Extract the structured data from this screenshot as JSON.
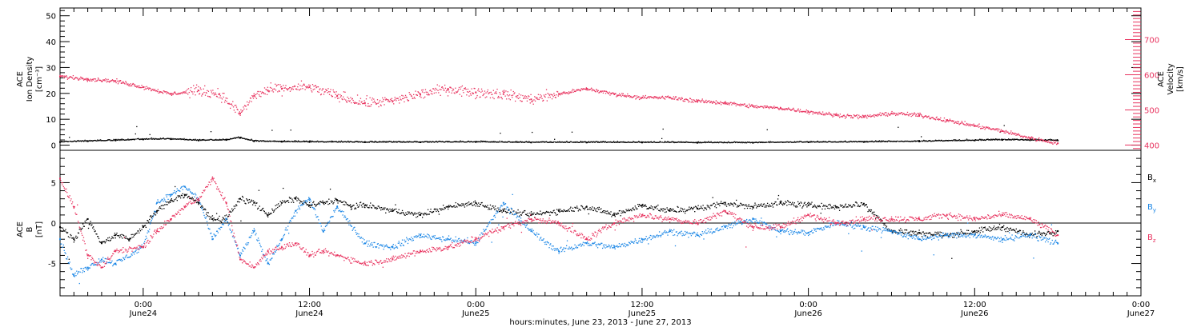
{
  "colors": {
    "black": "#000000",
    "red": "#e8335f",
    "blue": "#1a86e6"
  },
  "time_axis": {
    "start_hours": -6.0,
    "end_hours": 72.0,
    "tick_labels": [
      {
        "h": 0,
        "time": "0:00",
        "date": "June24"
      },
      {
        "h": 12,
        "time": "12:00",
        "date": "June24"
      },
      {
        "h": 24,
        "time": "0:00",
        "date": "June25"
      },
      {
        "h": 36,
        "time": "12:00",
        "date": "June25"
      },
      {
        "h": 48,
        "time": "0:00",
        "date": "June26"
      },
      {
        "h": 60,
        "time": "12:00",
        "date": "June26"
      },
      {
        "h": 72,
        "time": "0:00",
        "date": "June27"
      }
    ],
    "xlabel": "hours:minutes, June 23, 2013 - June 27, 2013"
  },
  "chart_data": [
    {
      "type": "scatter",
      "panel": "plasma",
      "left_axis": {
        "label_lines": [
          "ACE",
          "Ion Density",
          "[cm⁻³]"
        ],
        "ylim": [
          -2,
          53
        ],
        "ticks": [
          0,
          10,
          20,
          30,
          40,
          50
        ],
        "tick_labels": [
          "0",
          "10",
          "20",
          "30",
          "40",
          "50"
        ]
      },
      "right_axis": {
        "label_lines": [
          "ACE",
          "Velocity",
          "[km/s]"
        ],
        "ylim": [
          385,
          790
        ],
        "ticks": [
          400,
          500,
          600,
          700
        ],
        "tick_labels": [
          "400",
          "500",
          "600",
          "700"
        ]
      },
      "series": [
        {
          "axis": "left",
          "color": "#000000",
          "points": [
            [
              -6,
              1.2
            ],
            [
              -4,
              1.5
            ],
            [
              -2,
              1.8
            ],
            [
              0,
              2.2
            ],
            [
              2,
              2.3
            ],
            [
              4,
              1.8
            ],
            [
              6,
              2.0
            ],
            [
              7,
              2.8
            ],
            [
              8,
              1.5
            ],
            [
              10,
              1.3
            ],
            [
              12,
              1.2
            ],
            [
              16,
              1.1
            ],
            [
              20,
              1.1
            ],
            [
              24,
              1.2
            ],
            [
              28,
              1.0
            ],
            [
              32,
              1.0
            ],
            [
              36,
              1.0
            ],
            [
              40,
              0.9
            ],
            [
              44,
              0.9
            ],
            [
              48,
              1.1
            ],
            [
              52,
              1.2
            ],
            [
              56,
              1.4
            ],
            [
              60,
              1.8
            ],
            [
              62,
              2.0
            ],
            [
              64,
              1.9
            ],
            [
              66,
              1.8
            ]
          ]
        },
        {
          "axis": "right",
          "color": "#e8335f",
          "points": [
            [
              -6,
              595
            ],
            [
              -4,
              588
            ],
            [
              -2,
              582
            ],
            [
              0,
              565
            ],
            [
              2,
              545
            ],
            [
              4,
              555
            ],
            [
              5.5,
              545
            ],
            [
              7,
              490
            ],
            [
              8,
              540
            ],
            [
              9,
              555
            ],
            [
              10,
              560
            ],
            [
              12,
              565
            ],
            [
              14,
              540
            ],
            [
              16,
              520
            ],
            [
              18,
              525
            ],
            [
              20,
              545
            ],
            [
              22,
              560
            ],
            [
              24,
              550
            ],
            [
              26,
              545
            ],
            [
              28,
              530
            ],
            [
              30,
              545
            ],
            [
              32,
              560
            ],
            [
              34,
              545
            ],
            [
              36,
              535
            ],
            [
              38,
              535
            ],
            [
              40,
              525
            ],
            [
              42,
              520
            ],
            [
              44,
              510
            ],
            [
              46,
              505
            ],
            [
              48,
              495
            ],
            [
              50,
              485
            ],
            [
              52,
              480
            ],
            [
              54,
              490
            ],
            [
              56,
              485
            ],
            [
              58,
              470
            ],
            [
              60,
              455
            ],
            [
              62,
              440
            ],
            [
              64,
              420
            ],
            [
              66,
              405
            ]
          ]
        }
      ]
    },
    {
      "type": "scatter",
      "panel": "magnetic_field",
      "left_axis": {
        "label_lines": [
          "ACE",
          "B",
          "[nT]"
        ],
        "ylim": [
          -9,
          9
        ],
        "ticks": [
          -5,
          0,
          5
        ],
        "tick_labels": [
          "-5",
          "0",
          "5"
        ]
      },
      "zero_line": true,
      "legend": [
        {
          "label": "B",
          "sub": "x",
          "color": "#000000"
        },
        {
          "label": "B",
          "sub": "y",
          "color": "#1a86e6"
        },
        {
          "label": "B",
          "sub": "z",
          "color": "#e8335f"
        }
      ],
      "series": [
        {
          "name": "Bx",
          "color": "#000000",
          "points": [
            [
              -6,
              -0.5
            ],
            [
              -5,
              -2.0
            ],
            [
              -4,
              0.5
            ],
            [
              -3,
              -2.5
            ],
            [
              -2,
              -1.5
            ],
            [
              -1,
              -2.0
            ],
            [
              0,
              -0.5
            ],
            [
              1,
              1.5
            ],
            [
              2,
              2.8
            ],
            [
              3,
              3.5
            ],
            [
              4,
              2.5
            ],
            [
              5,
              0.5
            ],
            [
              6,
              0.5
            ],
            [
              7,
              3.0
            ],
            [
              8,
              2.5
            ],
            [
              9,
              1.0
            ],
            [
              10,
              2.5
            ],
            [
              11,
              3.0
            ],
            [
              12,
              2.2
            ],
            [
              13,
              2.5
            ],
            [
              14,
              2.8
            ],
            [
              15,
              2.0
            ],
            [
              16,
              2.2
            ],
            [
              18,
              1.5
            ],
            [
              20,
              1.0
            ],
            [
              22,
              2.0
            ],
            [
              24,
              2.5
            ],
            [
              26,
              1.5
            ],
            [
              28,
              1.0
            ],
            [
              30,
              1.5
            ],
            [
              32,
              2.0
            ],
            [
              34,
              1.0
            ],
            [
              36,
              2.2
            ],
            [
              38,
              1.5
            ],
            [
              40,
              1.8
            ],
            [
              42,
              2.5
            ],
            [
              44,
              2.0
            ],
            [
              46,
              2.5
            ],
            [
              48,
              2.2
            ],
            [
              50,
              2.0
            ],
            [
              52,
              2.4
            ],
            [
              54,
              -1.0
            ],
            [
              56,
              -1.2
            ],
            [
              58,
              -1.5
            ],
            [
              60,
              -1.0
            ],
            [
              62,
              -0.5
            ],
            [
              64,
              -1.5
            ],
            [
              66,
              -1.0
            ]
          ]
        },
        {
          "name": "By",
          "color": "#1a86e6",
          "points": [
            [
              -6,
              -2.0
            ],
            [
              -5,
              -6.5
            ],
            [
              -4,
              -5.5
            ],
            [
              -3,
              -4.5
            ],
            [
              -2,
              -5.0
            ],
            [
              0,
              -3.0
            ],
            [
              1,
              2.5
            ],
            [
              2,
              3.5
            ],
            [
              3,
              4.5
            ],
            [
              4,
              3.0
            ],
            [
              5,
              -2.0
            ],
            [
              6,
              0.5
            ],
            [
              7,
              -4.0
            ],
            [
              8,
              -1.0
            ],
            [
              9,
              -5.0
            ],
            [
              10,
              -2.0
            ],
            [
              11,
              1.5
            ],
            [
              12,
              3.0
            ],
            [
              13,
              -1.0
            ],
            [
              14,
              2.0
            ],
            [
              16,
              -2.5
            ],
            [
              18,
              -3.0
            ],
            [
              20,
              -1.5
            ],
            [
              22,
              -2.0
            ],
            [
              24,
              -2.5
            ],
            [
              26,
              2.5
            ],
            [
              28,
              -1.0
            ],
            [
              30,
              -3.5
            ],
            [
              32,
              -2.5
            ],
            [
              34,
              -3.0
            ],
            [
              36,
              -2.0
            ],
            [
              38,
              -1.0
            ],
            [
              40,
              -1.5
            ],
            [
              42,
              -0.5
            ],
            [
              44,
              0.5
            ],
            [
              46,
              -1.0
            ],
            [
              48,
              -1.2
            ],
            [
              50,
              0.0
            ],
            [
              52,
              -0.5
            ],
            [
              54,
              -1.0
            ],
            [
              56,
              -2.0
            ],
            [
              58,
              -1.5
            ],
            [
              60,
              -1.5
            ],
            [
              62,
              -2.0
            ],
            [
              64,
              -1.5
            ],
            [
              66,
              -2.5
            ]
          ]
        },
        {
          "name": "Bz",
          "color": "#e8335f",
          "points": [
            [
              -6,
              5.5
            ],
            [
              -5,
              2.0
            ],
            [
              -4,
              -4.0
            ],
            [
              -3,
              -5.5
            ],
            [
              -2,
              -3.5
            ],
            [
              0,
              -3.0
            ],
            [
              1,
              -1.0
            ],
            [
              2,
              0.5
            ],
            [
              3,
              2.0
            ],
            [
              4,
              3.0
            ],
            [
              5,
              5.5
            ],
            [
              6,
              2.5
            ],
            [
              7,
              -4.5
            ],
            [
              8,
              -5.5
            ],
            [
              9,
              -3.5
            ],
            [
              10,
              -3.0
            ],
            [
              11,
              -2.5
            ],
            [
              12,
              -4.0
            ],
            [
              13,
              -3.5
            ],
            [
              14,
              -4.0
            ],
            [
              16,
              -5.0
            ],
            [
              18,
              -4.5
            ],
            [
              20,
              -3.5
            ],
            [
              22,
              -3.0
            ],
            [
              24,
              -2.0
            ],
            [
              26,
              -0.5
            ],
            [
              28,
              0.5
            ],
            [
              30,
              0.0
            ],
            [
              32,
              -2.0
            ],
            [
              34,
              0.0
            ],
            [
              36,
              1.0
            ],
            [
              38,
              0.5
            ],
            [
              40,
              0.0
            ],
            [
              42,
              1.5
            ],
            [
              44,
              -0.5
            ],
            [
              46,
              -0.5
            ],
            [
              48,
              1.0
            ],
            [
              50,
              0.0
            ],
            [
              52,
              0.5
            ],
            [
              54,
              0.5
            ],
            [
              56,
              0.5
            ],
            [
              58,
              1.0
            ],
            [
              60,
              0.5
            ],
            [
              62,
              1.0
            ],
            [
              64,
              0.5
            ],
            [
              66,
              -1.5
            ]
          ]
        }
      ]
    }
  ]
}
